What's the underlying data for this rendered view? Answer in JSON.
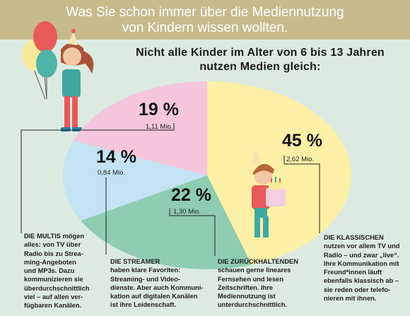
{
  "header": {
    "line1": "Was Sie schon immer über die Mediennutzung",
    "line2": "von Kindern wissen wollten."
  },
  "subtitle": {
    "line1": "Nicht alle Kinder im Alter von 6 bis 13 Jahren",
    "line2": "nutzen Medien gleich:"
  },
  "colors": {
    "background": "#dcebe2",
    "header": "#c7ba8d",
    "klassischen": "#fbf0a6",
    "zurueckhaltenden": "#8fcdb2",
    "streamer": "#c3e3f5",
    "multis": "#f5c6dc"
  },
  "chart_data": {
    "type": "pie",
    "title": "Nicht alle Kinder im Alter von 6 bis 13 Jahren nutzen Medien gleich:",
    "slices": [
      {
        "key": "klassischen",
        "percent": 45,
        "value_label": "45 %",
        "count_label": "2,62 Mio.",
        "count_mio": 2.62
      },
      {
        "key": "zurueckhaltenden",
        "percent": 22,
        "value_label": "22 %",
        "count_label": "1,30 Mio.",
        "count_mio": 1.3
      },
      {
        "key": "streamer",
        "percent": 14,
        "value_label": "14 %",
        "count_label": "0,84 Mio.",
        "count_mio": 0.84
      },
      {
        "key": "multis",
        "percent": 19,
        "value_label": "19 %",
        "count_label": "1,11 Mio.",
        "count_mio": 1.11
      }
    ]
  },
  "descriptions": {
    "multis": {
      "title": "DIE MULTIS",
      "lines": [
        "DIE MULTIS mögen",
        "alles: von TV über",
        "Radio bis zu Strea-",
        "ming-Angeboten",
        "und MP3s. Dazu",
        "kommunizieren sie",
        "überdurchschnittlich",
        "viel – auf allen ver-",
        "fügbaren Kanälen."
      ]
    },
    "streamer": {
      "title": "DIE STREAMER",
      "lines": [
        "haben klare Favoriten:",
        "Streaming- und Video-",
        "dienste. Aber auch Kommuni-",
        "kation auf digitalen Kanälen",
        "ist ihre Leidenschaft."
      ]
    },
    "zurueckhaltenden": {
      "title": "DIE ZURÜCKHALTENDEN",
      "lines": [
        "schauen gerne lineares",
        "Fernsehen und lesen",
        "Zeitschriften. Ihre",
        "Mediennutzung ist",
        "unterdurchschnittlich."
      ]
    },
    "klassischen": {
      "title": "DIE KLASSISCHEN",
      "lines": [
        "nutzen vor allem TV und",
        "Radio – und zwar „live“.",
        "Ihre Kommunikation mit",
        "Freund*innen läuft",
        "ebenfalls klassisch ab –",
        "sie reden oder telefo-",
        "nieren mit ihnen."
      ]
    }
  }
}
